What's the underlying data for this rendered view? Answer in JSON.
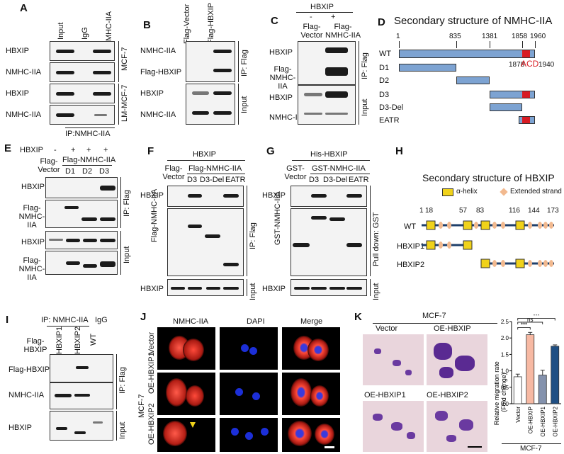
{
  "panels": {
    "A": "A",
    "B": "B",
    "C": "C",
    "D": "D",
    "E": "E",
    "F": "F",
    "G": "G",
    "H": "H",
    "I": "I",
    "J": "J",
    "K": "K"
  },
  "a": {
    "cols": [
      "Input",
      "IgG",
      "NMHC-IIA"
    ],
    "rows": [
      "HBXIP",
      "NMHC-IIA",
      "HBXIP",
      "NMHC-IIA"
    ],
    "cell_mcf7": "MCF-7",
    "cell_lm": "LM-MCF-7",
    "ip": "IP:NMHC-IIA"
  },
  "b": {
    "cols": [
      "Flag-Vector",
      "Flag-HBXIP"
    ],
    "rows": [
      "NMHC-IIA",
      "Flag-HBXIP",
      "HBXIP",
      "NMHC-IIA"
    ],
    "ip": "IP: Flag",
    "input": "Input"
  },
  "c": {
    "header": "HBXIP",
    "minus": "-",
    "plus": "+",
    "cols": [
      "Flag-Vector",
      "Flag-NMHC-IIA"
    ],
    "rows": [
      "HBXIP",
      "Flag-NMHC-IIA",
      "HBXIP",
      "NMHC-IIA"
    ],
    "ip": "IP: Flag",
    "input": "Input"
  },
  "d": {
    "title": "Secondary structure of NMHC-IIA",
    "positions": [
      "1",
      "835",
      "1381",
      "1858",
      "1960"
    ],
    "rows": [
      "WT",
      "D1",
      "D2",
      "D3",
      "D3-Del",
      "EATR"
    ],
    "acd": "ACD",
    "p1878": "1878",
    "p1940": "1940"
  },
  "e": {
    "hbxip": "HBXIP",
    "signs": [
      "-",
      "+",
      "+",
      "+"
    ],
    "vector": "Flag-Vector",
    "group": "Flag-NMHC-IIA",
    "cols": [
      "D1",
      "D2",
      "D3"
    ],
    "rows": [
      "HBXIP",
      "Flag-NMHC-IIA",
      "HBXIP",
      "Flag-NMHC-IIA"
    ],
    "ip": "IP: Flag",
    "input": "Input"
  },
  "f": {
    "header": "HBXIP",
    "vector": "Flag-Vector",
    "group": "Flag-NMHC-IIA",
    "cols": [
      "D3",
      "D3-Del",
      "EATR"
    ],
    "rows": [
      "HBXIP",
      "Flag-NMHC-IIA",
      "HBXIP"
    ],
    "ip": "IP: Flag",
    "input": "Input"
  },
  "g": {
    "header": "His-HBXIP",
    "vector": "GST-Vector",
    "group": "GST-NMHC-IIA",
    "cols": [
      "D3",
      "D3-Del",
      "EATR"
    ],
    "rows": [
      "HBXIP",
      "GST-NMHC-IIA",
      "HBXIP"
    ],
    "pull": "Pull down: GST",
    "input": "Input"
  },
  "h": {
    "title": "Secondary structure of HBXIP",
    "legend_helix": "α-helix",
    "legend_strand": "Extended strand",
    "positions": [
      "1",
      "18",
      "57",
      "83",
      "116",
      "144",
      "173"
    ],
    "rows": [
      "WT",
      "HBXIP1",
      "HBXIP2"
    ]
  },
  "i": {
    "ip": "IP: NMHC-IIA",
    "igg": "IgG",
    "flag_hbxip": "Flag-HBXIP",
    "cols": [
      "HBXIP1",
      "HBXIP2",
      "WT"
    ],
    "rows": [
      "Flag-HBXIP",
      "NMHC-IIA",
      "HBXIP"
    ],
    "ipflag": "IP: Flag",
    "input": "Input"
  },
  "j": {
    "cols": [
      "NMHC-IIA",
      "DAPI",
      "Merge"
    ],
    "rows": [
      "Vector",
      "OE-HBXIP1",
      "OE-HBXIP2"
    ],
    "cell": "MCF-7"
  },
  "k": {
    "header": "MCF-7",
    "images": [
      "Vector",
      "OE-HBXIP",
      "OE-HBXIP1",
      "OE-HBXIP2"
    ],
    "sig": [
      "***",
      "ns",
      "***"
    ],
    "footer": "MCF-7"
  },
  "chart_data": {
    "type": "bar",
    "categories": [
      "Vector",
      "OE-HBXIP",
      "OE-HBXIP1",
      "OE-HBXIP2"
    ],
    "values": [
      0.82,
      2.1,
      0.87,
      1.75
    ],
    "errors": [
      0.08,
      0.07,
      0.15,
      0.04
    ],
    "colors": [
      "#ffffff",
      "#f7b9a3",
      "#8492ad",
      "#1f4f84"
    ],
    "ylabel": "Relative migration rate (Fold change)",
    "ylim": [
      0,
      2.5
    ],
    "yticks": [
      "0.0",
      "0.5",
      "1.0",
      "1.5",
      "2.0",
      "2.5"
    ]
  }
}
